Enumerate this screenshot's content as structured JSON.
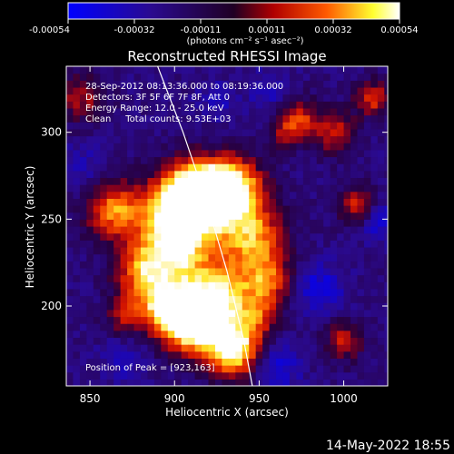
{
  "chart_data": {
    "type": "heatmap",
    "title": "Reconstructed RHESSI Image",
    "colorbar": {
      "ticks": [
        "-0.00054",
        "-0.00032",
        "-0.00011",
        "0.00011",
        "0.00032",
        "0.00054"
      ],
      "unit_label": "(photons cm⁻² s⁻¹ asec⁻²)",
      "range": [
        -0.00054,
        0.00054
      ],
      "colormap": "blue-purple-red-yellow-white"
    },
    "xlabel": "Heliocentric X (arcsec)",
    "ylabel": "Heliocentric Y (arcsec)",
    "xlim": [
      836,
      1026
    ],
    "ylim": [
      154,
      338
    ],
    "xticks": [
      850,
      900,
      950,
      1000
    ],
    "yticks": [
      200,
      250,
      300
    ],
    "annotations": [
      "28-Sep-2012 08:13:36.000 to 08:19:36.000",
      "Detectors: 3F 5F 6F 7F 8F, Att 0",
      "Energy Range: 12.0 - 25.0 keV",
      "Clean     Total counts: 9.53E+03"
    ],
    "peak_label": "Position of Peak = [923,163]",
    "peak_position": [
      923,
      163
    ],
    "limb_curve": [
      [
        890,
        338
      ],
      [
        905,
        300
      ],
      [
        919,
        260
      ],
      [
        931,
        220
      ],
      [
        941,
        180
      ],
      [
        946,
        154
      ]
    ],
    "sources": [
      {
        "x": 905,
        "y": 260,
        "s": 14,
        "a": 1.0
      },
      {
        "x": 918,
        "y": 265,
        "s": 13,
        "a": 0.85
      },
      {
        "x": 900,
        "y": 235,
        "s": 14,
        "a": 0.9
      },
      {
        "x": 935,
        "y": 268,
        "s": 12,
        "a": 0.9
      },
      {
        "x": 945,
        "y": 240,
        "s": 14,
        "a": 0.75
      },
      {
        "x": 925,
        "y": 205,
        "s": 14,
        "a": 0.9
      },
      {
        "x": 910,
        "y": 190,
        "s": 12,
        "a": 1.0
      },
      {
        "x": 935,
        "y": 175,
        "s": 11,
        "a": 1.0
      },
      {
        "x": 895,
        "y": 200,
        "s": 11,
        "a": 0.85
      },
      {
        "x": 880,
        "y": 220,
        "s": 11,
        "a": 0.6
      },
      {
        "x": 865,
        "y": 255,
        "s": 12,
        "a": 0.7
      },
      {
        "x": 955,
        "y": 215,
        "s": 10,
        "a": 0.55
      },
      {
        "x": 950,
        "y": 195,
        "s": 9,
        "a": 0.4
      },
      {
        "x": 1017,
        "y": 320,
        "s": 7,
        "a": 0.55
      },
      {
        "x": 1008,
        "y": 258,
        "s": 8,
        "a": 0.5
      },
      {
        "x": 975,
        "y": 308,
        "s": 8,
        "a": 0.45
      },
      {
        "x": 995,
        "y": 300,
        "s": 9,
        "a": 0.45
      },
      {
        "x": 1000,
        "y": 180,
        "s": 8,
        "a": 0.45
      },
      {
        "x": 845,
        "y": 320,
        "s": 10,
        "a": 0.4
      },
      {
        "x": 965,
        "y": 300,
        "s": 7,
        "a": 0.35
      },
      {
        "x": 870,
        "y": 195,
        "s": 8,
        "a": 0.4
      }
    ],
    "negatives": [
      {
        "x": 985,
        "y": 210,
        "s": 10,
        "a": 0.5
      },
      {
        "x": 960,
        "y": 165,
        "s": 10,
        "a": 0.45
      },
      {
        "x": 1020,
        "y": 250,
        "s": 8,
        "a": 0.5
      },
      {
        "x": 955,
        "y": 325,
        "s": 8,
        "a": 0.3
      },
      {
        "x": 845,
        "y": 280,
        "s": 9,
        "a": 0.3
      },
      {
        "x": 925,
        "y": 318,
        "s": 8,
        "a": 0.3
      },
      {
        "x": 870,
        "y": 170,
        "s": 9,
        "a": 0.3
      }
    ]
  },
  "footer": {
    "date": "14-May-2022 18:55"
  }
}
